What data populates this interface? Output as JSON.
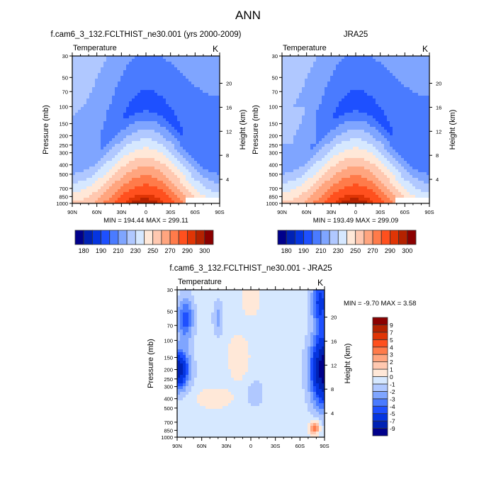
{
  "chart_data": {
    "type": "heatmap",
    "title": "ANN",
    "panels": [
      {
        "id": "model",
        "title": "f.cam6_3_132.FCLTHIST_ne30.001 (yrs 2000-2009)",
        "left_label": "Temperature",
        "units": "K",
        "ylabel": "Pressure (mb)",
        "y2label": "Height (km)",
        "minmax": "MIN = 194.44  MAX = 299.11",
        "min": 194.44,
        "max": 299.11,
        "field": "absolute"
      },
      {
        "id": "obs",
        "title": "JRA25",
        "left_label": "Temperature",
        "units": "K",
        "ylabel": "Pressure (mb)",
        "y2label": "Height (km)",
        "minmax": "MIN = 193.49  MAX = 299.09",
        "min": 193.49,
        "max": 299.09,
        "field": "absolute"
      },
      {
        "id": "diff",
        "title": "f.cam6_3_132.FCLTHIST_ne30.001 - JRA25",
        "left_label": "Temperature",
        "units": "K",
        "ylabel": "Pressure (mb)",
        "y2label": "Height (km)",
        "minmax": "MIN =  -9.70  MAX =   3.58",
        "min": -9.7,
        "max": 3.58,
        "field": "difference"
      }
    ],
    "x_ticks": [
      "90N",
      "60N",
      "30N",
      "0",
      "30S",
      "60S",
      "90S"
    ],
    "x_range": [
      90,
      -90
    ],
    "y_ticks": [
      30,
      50,
      70,
      100,
      150,
      200,
      250,
      300,
      400,
      500,
      700,
      850,
      1000
    ],
    "y_range": [
      1000,
      30
    ],
    "y_scale": "log",
    "height_ticks": [
      4,
      8,
      12,
      16,
      20
    ],
    "abs_colorbar": {
      "levels": [
        180,
        185,
        190,
        200,
        210,
        220,
        230,
        240,
        250,
        260,
        270,
        280,
        290,
        295,
        300
      ],
      "labels": [
        "180",
        "190",
        "210",
        "230",
        "250",
        "270",
        "290",
        "300"
      ],
      "colors": [
        "#00008b",
        "#0022b4",
        "#0535e0",
        "#1e50ff",
        "#4a7bff",
        "#7fa5ff",
        "#b0c8ff",
        "#d6e8ff",
        "#ffe8d8",
        "#ffc8b0",
        "#ffa57f",
        "#ff7b4a",
        "#ff501e",
        "#e03505",
        "#b42200",
        "#8b0000"
      ]
    },
    "diff_colorbar": {
      "levels": [
        -9,
        -7,
        -5,
        -4,
        -3,
        -2,
        -1,
        0,
        1,
        2,
        3,
        4,
        5,
        7,
        9
      ],
      "labels": [
        "-9",
        "-7",
        "-5",
        "-4",
        "-3",
        "-2",
        "-1",
        "0",
        "1",
        "2",
        "3",
        "4",
        "5",
        "7",
        "9"
      ],
      "colors": [
        "#00008b",
        "#0022b4",
        "#0535e0",
        "#1e50ff",
        "#4a7bff",
        "#7fa5ff",
        "#b0c8ff",
        "#d6e8ff",
        "#ffe8d8",
        "#ffc8b0",
        "#ffa57f",
        "#ff7b4a",
        "#ff501e",
        "#e03505",
        "#b42200",
        "#8b0000"
      ]
    }
  }
}
